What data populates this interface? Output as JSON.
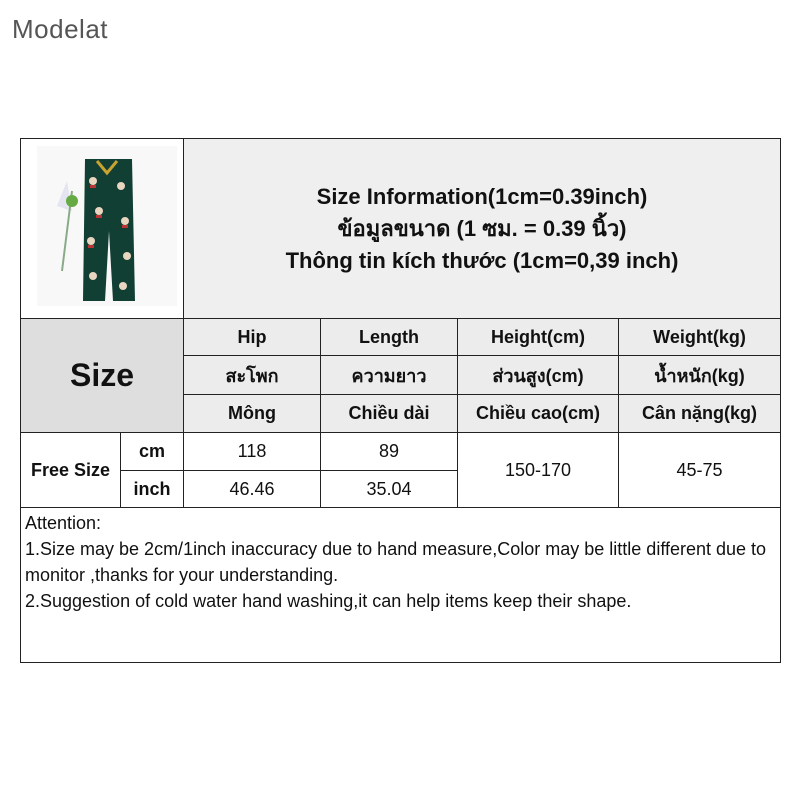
{
  "brand": "Modelat",
  "header": {
    "line1": "Size Information(1cm=0.39inch)",
    "line2": "ข้อมูลขนาด (1 ซม. = 0.39 นิ้ว)",
    "line3": "Thông tin kích thước (1cm=0,39 inch)"
  },
  "size_label": "Size",
  "columns": [
    {
      "en": "Hip",
      "th": "สะโพก",
      "vi": "Mông"
    },
    {
      "en": "Length",
      "th": "ความยาว",
      "vi": "Chiều dài"
    },
    {
      "en": "Height(cm)",
      "th": "ส่วนสูง(cm)",
      "vi": "Chiều cao(cm)"
    },
    {
      "en": "Weight(kg)",
      "th": "น้ำหนัก(kg)",
      "vi": "Cân nặng(kg)"
    }
  ],
  "row_label": "Free Size",
  "units": [
    "cm",
    "inch"
  ],
  "values": {
    "cm": [
      "118",
      "89"
    ],
    "inch": [
      "46.46",
      "35.04"
    ],
    "height": "150-170",
    "weight": "45-75"
  },
  "attention": "Attention:\n1.Size may be 2cm/1inch inaccuracy due to hand measure,Color may be little different due to monitor ,thanks for your understanding.\n2.Suggestion of cold water hand washing,it can help items keep their shape."
}
